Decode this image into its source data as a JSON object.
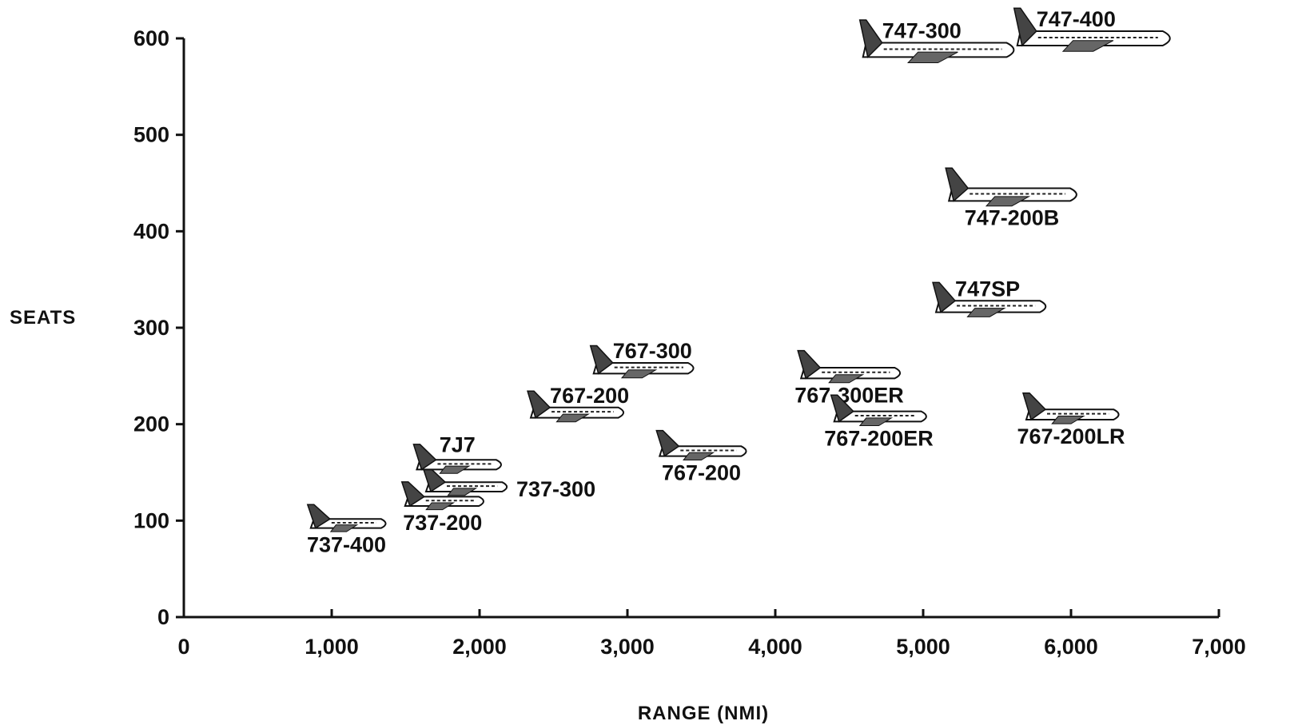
{
  "chart_data": {
    "type": "scatter",
    "title": "",
    "xlabel": "RANGE (NMI)",
    "ylabel": "SEATS",
    "xlim": [
      0,
      7000
    ],
    "ylim": [
      0,
      600
    ],
    "x_ticks": [
      {
        "value": 0,
        "label": "0"
      },
      {
        "value": 1000,
        "label": "1,000"
      },
      {
        "value": 2000,
        "label": "2,000"
      },
      {
        "value": 3000,
        "label": "3,000"
      },
      {
        "value": 4000,
        "label": "4,000"
      },
      {
        "value": 5000,
        "label": "5,000"
      },
      {
        "value": 6000,
        "label": "6,000"
      },
      {
        "value": 7000,
        "label": "7,000"
      }
    ],
    "y_ticks": [
      {
        "value": 0,
        "label": "0"
      },
      {
        "value": 100,
        "label": "100"
      },
      {
        "value": 200,
        "label": "200"
      },
      {
        "value": 300,
        "label": "300"
      },
      {
        "value": 400,
        "label": "400"
      },
      {
        "value": 500,
        "label": "500"
      },
      {
        "value": 600,
        "label": "600"
      }
    ],
    "grid": false,
    "points": [
      {
        "label": "737-400",
        "x": 1100,
        "y": 97,
        "label_pos": "below"
      },
      {
        "label": "737-200",
        "x": 1750,
        "y": 120,
        "label_pos": "below"
      },
      {
        "label": "737-300",
        "x": 1900,
        "y": 135,
        "label_pos": "right"
      },
      {
        "label": "7J7",
        "x": 1850,
        "y": 158,
        "label_pos": "above"
      },
      {
        "label": "767-200",
        "x": 2650,
        "y": 212,
        "label_pos": "above-right"
      },
      {
        "label": "767-300",
        "x": 3100,
        "y": 258,
        "label_pos": "above-right"
      },
      {
        "label": "767-200",
        "x": 3500,
        "y": 172,
        "label_pos": "below"
      },
      {
        "label": "767-300ER",
        "x": 4500,
        "y": 253,
        "label_pos": "below"
      },
      {
        "label": "767-200ER",
        "x": 4700,
        "y": 208,
        "label_pos": "below"
      },
      {
        "label": "767-200LR",
        "x": 6000,
        "y": 210,
        "label_pos": "below"
      },
      {
        "label": "747SP",
        "x": 5450,
        "y": 322,
        "label_pos": "above-right"
      },
      {
        "label": "747-200B",
        "x": 5600,
        "y": 438,
        "label_pos": "below"
      },
      {
        "label": "747-300",
        "x": 5100,
        "y": 588,
        "label_pos": "above-right"
      },
      {
        "label": "747-400",
        "x": 6150,
        "y": 600,
        "label_pos": "above-right"
      }
    ]
  }
}
